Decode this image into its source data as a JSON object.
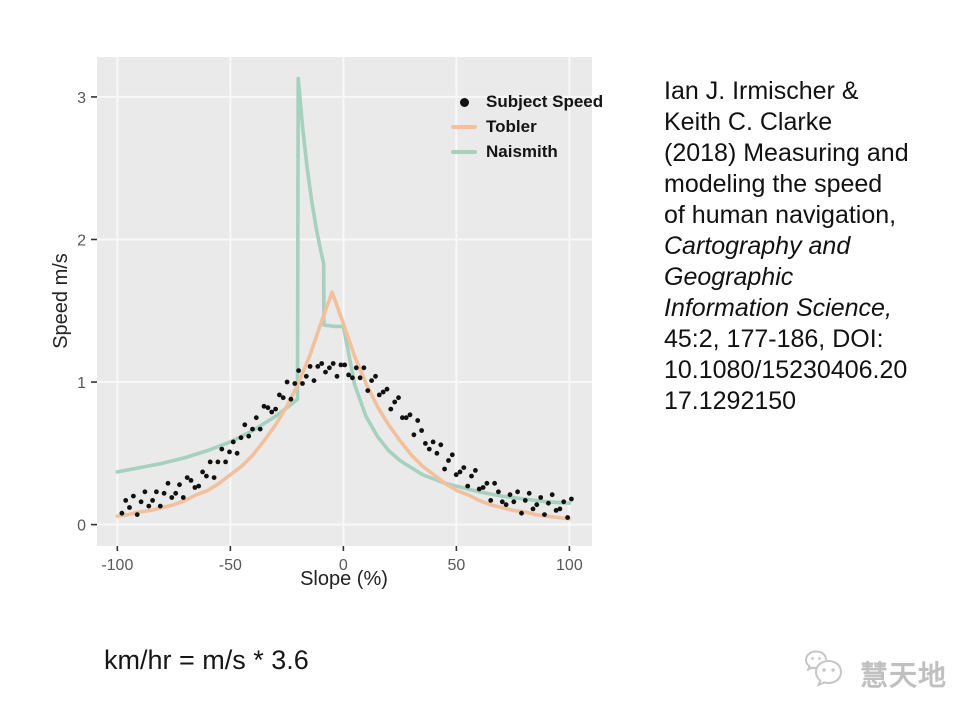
{
  "slide": {
    "formula": "km/hr = m/s * 3.6",
    "watermark": {
      "text": "慧天地",
      "icon": "wechat-bubbles-icon"
    }
  },
  "citation": {
    "lines": [
      {
        "text": "Ian J. Irmischer &",
        "italic": false
      },
      {
        "text": "Keith C. Clarke",
        "italic": false
      },
      {
        "text": "(2018) Measuring and",
        "italic": false
      },
      {
        "text": "modeling the speed",
        "italic": false
      },
      {
        "text": "of human navigation,",
        "italic": false
      },
      {
        "text": "Cartography and",
        "italic": true
      },
      {
        "text": "Geographic",
        "italic": true
      },
      {
        "text": "Information Science,",
        "italic": true
      },
      {
        "text": "45:2, 177-186, DOI:",
        "italic": false
      },
      {
        "text": "10.1080/15230406.20",
        "italic": false
      },
      {
        "text": "17.1292150",
        "italic": false
      }
    ]
  },
  "chart_data": {
    "type": "scatter",
    "title": "",
    "xlabel": "Slope (%)",
    "ylabel": "Speed m/s",
    "xlim": [
      -109,
      110
    ],
    "ylim": [
      -0.15,
      3.28
    ],
    "x_ticks": [
      -100,
      -50,
      0,
      50,
      100
    ],
    "y_ticks": [
      0,
      1,
      2,
      3
    ],
    "grid": true,
    "panel_bg": "#eaeaea",
    "grid_color": "#f8f8f8",
    "tick_color": "#333333",
    "legend_position": "inside-top-right",
    "legend": [
      {
        "label": "Subject Speed",
        "type": "point",
        "color": "#111111"
      },
      {
        "label": "Tobler",
        "type": "line",
        "color": "#f2c09c"
      },
      {
        "label": "Naismith",
        "type": "line",
        "color": "#a6d1be"
      }
    ],
    "series": [
      {
        "name": "Naismith",
        "type": "line",
        "color": "#a6d1be",
        "width": 3.6,
        "points": [
          [
            -100,
            0.37
          ],
          [
            -90,
            0.4
          ],
          [
            -80,
            0.43
          ],
          [
            -70,
            0.47
          ],
          [
            -60,
            0.52
          ],
          [
            -50,
            0.58
          ],
          [
            -40,
            0.66
          ],
          [
            -30,
            0.76
          ],
          [
            -25,
            0.82
          ],
          [
            -20.3,
            0.88
          ],
          [
            -20,
            3.13
          ],
          [
            -18,
            2.78
          ],
          [
            -16,
            2.5
          ],
          [
            -14,
            2.27
          ],
          [
            -12,
            2.08
          ],
          [
            -10,
            1.92
          ],
          [
            -8.7,
            1.83
          ],
          [
            -8.6,
            1.4
          ],
          [
            -4,
            1.39
          ],
          [
            0,
            1.39
          ],
          [
            5,
            0.98
          ],
          [
            10,
            0.76
          ],
          [
            15,
            0.62
          ],
          [
            20,
            0.52
          ],
          [
            25,
            0.45
          ],
          [
            30,
            0.4
          ],
          [
            35,
            0.35
          ],
          [
            40,
            0.32
          ],
          [
            45,
            0.29
          ],
          [
            50,
            0.27
          ],
          [
            60,
            0.23
          ],
          [
            70,
            0.2
          ],
          [
            80,
            0.18
          ],
          [
            90,
            0.16
          ],
          [
            100,
            0.15
          ]
        ]
      },
      {
        "name": "Tobler",
        "type": "line",
        "color": "#f2c09c",
        "width": 3.6,
        "points": [
          [
            -100,
            0.06
          ],
          [
            -95,
            0.07
          ],
          [
            -90,
            0.09
          ],
          [
            -85,
            0.1
          ],
          [
            -80,
            0.12
          ],
          [
            -75,
            0.14
          ],
          [
            -70,
            0.17
          ],
          [
            -65,
            0.21
          ],
          [
            -60,
            0.24
          ],
          [
            -55,
            0.29
          ],
          [
            -50,
            0.35
          ],
          [
            -45,
            0.41
          ],
          [
            -40,
            0.49
          ],
          [
            -35,
            0.59
          ],
          [
            -30,
            0.7
          ],
          [
            -25,
            0.83
          ],
          [
            -20,
            0.99
          ],
          [
            -15,
            1.18
          ],
          [
            -10,
            1.41
          ],
          [
            -5,
            1.63
          ],
          [
            0,
            1.41
          ],
          [
            5,
            1.18
          ],
          [
            10,
            0.99
          ],
          [
            15,
            0.83
          ],
          [
            20,
            0.7
          ],
          [
            25,
            0.59
          ],
          [
            30,
            0.49
          ],
          [
            35,
            0.41
          ],
          [
            40,
            0.35
          ],
          [
            45,
            0.29
          ],
          [
            50,
            0.24
          ],
          [
            55,
            0.21
          ],
          [
            60,
            0.17
          ],
          [
            65,
            0.14
          ],
          [
            70,
            0.12
          ],
          [
            75,
            0.1
          ],
          [
            80,
            0.09
          ],
          [
            85,
            0.07
          ],
          [
            90,
            0.06
          ],
          [
            95,
            0.05
          ],
          [
            100,
            0.04
          ]
        ]
      },
      {
        "name": "Subject Speed",
        "type": "scatter",
        "color": "#111111",
        "radius": 2.4,
        "points": [
          [
            -98,
            0.08
          ],
          [
            -96.3,
            0.17
          ],
          [
            -94.6,
            0.12
          ],
          [
            -92.9,
            0.2
          ],
          [
            -91.2,
            0.07
          ],
          [
            -89.5,
            0.16
          ],
          [
            -87.8,
            0.23
          ],
          [
            -86.1,
            0.13
          ],
          [
            -84.4,
            0.17
          ],
          [
            -82.7,
            0.23
          ],
          [
            -81,
            0.13
          ],
          [
            -79.3,
            0.22
          ],
          [
            -77.6,
            0.29
          ],
          [
            -75.9,
            0.19
          ],
          [
            -74.2,
            0.22
          ],
          [
            -72.5,
            0.28
          ],
          [
            -70.8,
            0.19
          ],
          [
            -69.1,
            0.33
          ],
          [
            -67.4,
            0.31
          ],
          [
            -65.7,
            0.26
          ],
          [
            -64,
            0.27
          ],
          [
            -62.3,
            0.37
          ],
          [
            -60.6,
            0.34
          ],
          [
            -58.9,
            0.44
          ],
          [
            -57.2,
            0.33
          ],
          [
            -55.5,
            0.44
          ],
          [
            -53.8,
            0.53
          ],
          [
            -52.1,
            0.44
          ],
          [
            -50.4,
            0.51
          ],
          [
            -48.7,
            0.58
          ],
          [
            -47,
            0.5
          ],
          [
            -45.3,
            0.61
          ],
          [
            -43.6,
            0.7
          ],
          [
            -41.9,
            0.62
          ],
          [
            -40.2,
            0.67
          ],
          [
            -38.5,
            0.75
          ],
          [
            -36.8,
            0.67
          ],
          [
            -35.1,
            0.83
          ],
          [
            -33.4,
            0.82
          ],
          [
            -31.7,
            0.79
          ],
          [
            -30,
            0.81
          ],
          [
            -28.3,
            0.91
          ],
          [
            -26.6,
            0.89
          ],
          [
            -24.9,
            1.0
          ],
          [
            -23.2,
            0.88
          ],
          [
            -21.5,
            0.99
          ],
          [
            -19.8,
            1.08
          ],
          [
            -18.1,
            0.99
          ],
          [
            -16.4,
            1.04
          ],
          [
            -14.7,
            1.11
          ],
          [
            -13,
            1.01
          ],
          [
            -11.3,
            1.11
          ],
          [
            -9.6,
            1.13
          ],
          [
            -7.9,
            1.07
          ],
          [
            -6.2,
            1.1
          ],
          [
            -4.5,
            1.13
          ],
          [
            -2.8,
            1.04
          ],
          [
            -1.1,
            1.12
          ],
          [
            0.6,
            1.12
          ],
          [
            2.3,
            1.05
          ],
          [
            4,
            1.03
          ],
          [
            5.7,
            1.1
          ],
          [
            7.4,
            1.03
          ],
          [
            9.1,
            1.1
          ],
          [
            10.8,
            0.94
          ],
          [
            12.5,
            1.01
          ],
          [
            14.2,
            1.04
          ],
          [
            15.9,
            0.91
          ],
          [
            17.6,
            0.93
          ],
          [
            19.3,
            0.95
          ],
          [
            21,
            0.81
          ],
          [
            22.7,
            0.86
          ],
          [
            24.4,
            0.89
          ],
          [
            26.1,
            0.75
          ],
          [
            27.8,
            0.75
          ],
          [
            29.5,
            0.77
          ],
          [
            31.2,
            0.63
          ],
          [
            32.9,
            0.73
          ],
          [
            34.6,
            0.66
          ],
          [
            36.3,
            0.57
          ],
          [
            38,
            0.53
          ],
          [
            39.7,
            0.58
          ],
          [
            41.4,
            0.5
          ],
          [
            43.1,
            0.56
          ],
          [
            44.8,
            0.39
          ],
          [
            46.5,
            0.45
          ],
          [
            48.2,
            0.49
          ],
          [
            49.9,
            0.35
          ],
          [
            51.6,
            0.37
          ],
          [
            53.3,
            0.4
          ],
          [
            55,
            0.27
          ],
          [
            56.7,
            0.34
          ],
          [
            58.4,
            0.38
          ],
          [
            60.1,
            0.25
          ],
          [
            61.8,
            0.26
          ],
          [
            63.5,
            0.29
          ],
          [
            65.2,
            0.17
          ],
          [
            66.9,
            0.29
          ],
          [
            68.6,
            0.23
          ],
          [
            70.3,
            0.16
          ],
          [
            72,
            0.14
          ],
          [
            73.7,
            0.21
          ],
          [
            75.4,
            0.16
          ],
          [
            77.1,
            0.23
          ],
          [
            78.8,
            0.08
          ],
          [
            80.5,
            0.17
          ],
          [
            82.2,
            0.22
          ],
          [
            83.9,
            0.11
          ],
          [
            85.6,
            0.14
          ],
          [
            87.3,
            0.19
          ],
          [
            89,
            0.07
          ],
          [
            90.7,
            0.15
          ],
          [
            92.4,
            0.21
          ],
          [
            94.1,
            0.1
          ],
          [
            95.8,
            0.11
          ],
          [
            97.5,
            0.16
          ],
          [
            99.2,
            0.05
          ],
          [
            100.9,
            0.18
          ]
        ]
      }
    ]
  }
}
